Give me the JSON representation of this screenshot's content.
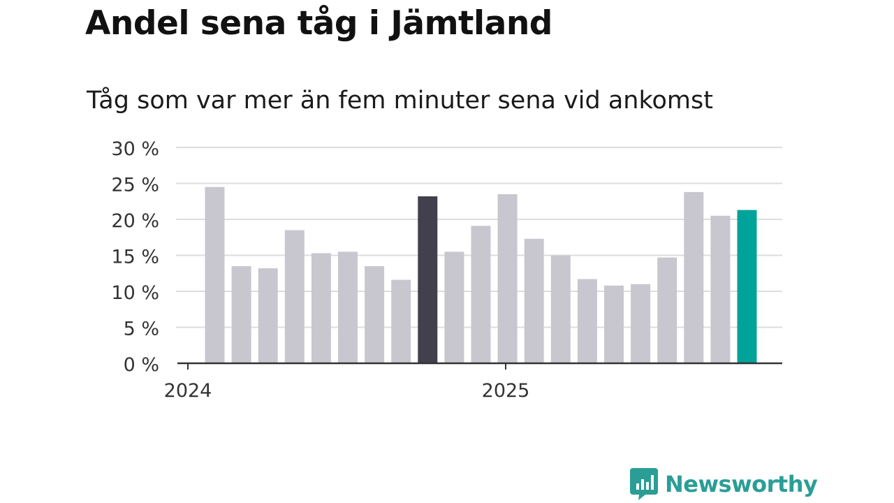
{
  "title": "Andel sena tåg i Jämtland",
  "subtitle": "Tåg som var mer än fem minuter sena vid ankomst",
  "brand": {
    "name": "Newsworthy",
    "color": "#2a9e96"
  },
  "colors": {
    "bar": "#c8c7cf",
    "highlight_dark": "#41404c",
    "highlight_teal": "#00a39a",
    "grid": "#dddddd",
    "axis": "#333333"
  },
  "chart_data": {
    "type": "bar",
    "title": "Andel sena tåg i Jämtland",
    "subtitle": "Tåg som var mer än fem minuter sena vid ankomst",
    "xlabel": "",
    "ylabel": "",
    "ylim": [
      0,
      30
    ],
    "yticks": [
      0,
      5,
      10,
      15,
      20,
      25,
      30
    ],
    "ytick_labels": [
      "0 %",
      "5 %",
      "10 %",
      "15 %",
      "20 %",
      "25 %",
      "30 %"
    ],
    "xtick_labels": [
      {
        "label": "2024",
        "index": 0
      },
      {
        "label": "2025",
        "index": 12
      }
    ],
    "grid": true,
    "values": [
      24.5,
      13.5,
      13.2,
      18.5,
      15.3,
      15.5,
      13.5,
      11.6,
      23.2,
      15.5,
      19.1,
      23.5,
      17.3,
      15.0,
      11.7,
      10.8,
      11.0,
      14.7,
      23.8,
      20.5,
      21.3
    ],
    "highlights": {
      "8": "dark",
      "20": "teal"
    }
  }
}
